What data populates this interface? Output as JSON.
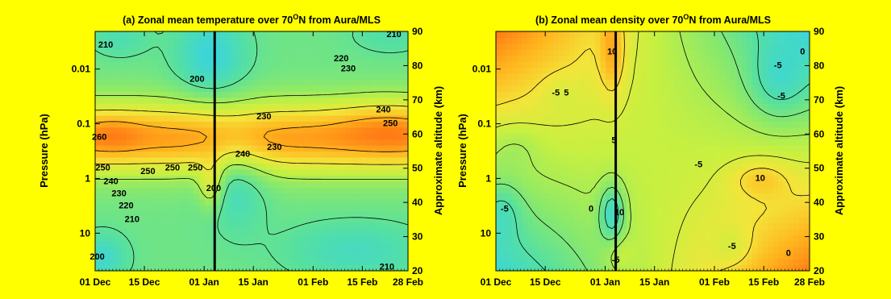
{
  "chart_data": [
    {
      "type": "heatmap",
      "title_prefix": "(a) Zonal mean temperature over 70",
      "title_sup": "O",
      "title_suffix": "N from Aura/MLS",
      "ylabel_left": "Pressure (hPa)",
      "ylabel_right": "Approximate altitude (km)",
      "x_ticks": [
        "01 Dec",
        "15 Dec",
        "01 Jan",
        "15 Jan",
        "01 Feb",
        "15 Feb",
        "28 Feb"
      ],
      "x_tick_days": [
        0,
        14,
        31,
        45,
        62,
        76,
        89
      ],
      "x_range_days": [
        0,
        89
      ],
      "y_log_pressure_ticks": [
        "0.01",
        "0.1",
        "1",
        "10"
      ],
      "y_altitude_ticks": [
        "20",
        "30",
        "40",
        "50",
        "60",
        "70",
        "80",
        "90"
      ],
      "y_altitude_range_km": [
        20,
        90
      ],
      "event_line_day": 34,
      "colormap": [
        "#1e5fe0",
        "#2fa8f0",
        "#3cd6d6",
        "#56e0a0",
        "#8be96a",
        "#c8f040",
        "#f3e53a",
        "#ffb41e",
        "#ff7a14",
        "#d2281c"
      ],
      "value_range": [
        195,
        265
      ],
      "contour_labels": [
        {
          "text": "210",
          "day": 3,
          "alt": 86
        },
        {
          "text": "200",
          "day": 0.6,
          "alt": 24
        },
        {
          "text": "260",
          "day": 1.2,
          "alt": 59
        },
        {
          "text": "250",
          "day": 2.2,
          "alt": 50
        },
        {
          "text": "240",
          "day": 4.5,
          "alt": 46
        },
        {
          "text": "230",
          "day": 6.8,
          "alt": 42.5
        },
        {
          "text": "220",
          "day": 8.8,
          "alt": 39
        },
        {
          "text": "210",
          "day": 10.5,
          "alt": 35
        },
        {
          "text": "250",
          "day": 15,
          "alt": 49
        },
        {
          "text": "250",
          "day": 22,
          "alt": 50
        },
        {
          "text": "250",
          "day": 28.5,
          "alt": 50
        },
        {
          "text": "200",
          "day": 29,
          "alt": 76
        },
        {
          "text": "200",
          "day": 33.7,
          "alt": 44
        },
        {
          "text": "230",
          "day": 48,
          "alt": 65
        },
        {
          "text": "240",
          "day": 42,
          "alt": 54
        },
        {
          "text": "230",
          "day": 51,
          "alt": 56
        },
        {
          "text": "220",
          "day": 70,
          "alt": 82
        },
        {
          "text": "230",
          "day": 72,
          "alt": 79
        },
        {
          "text": "240",
          "day": 82,
          "alt": 67
        },
        {
          "text": "250",
          "day": 84,
          "alt": 63
        },
        {
          "text": "210",
          "day": 85,
          "alt": 89
        },
        {
          "text": "210",
          "day": 83,
          "alt": 21
        }
      ]
    },
    {
      "type": "heatmap",
      "title_prefix": "(b) Zonal mean density over 70",
      "title_sup": "O",
      "title_suffix": "N from Aura/MLS",
      "ylabel_left": "Pressure (hPa)",
      "ylabel_right": "Approximate altitude (km)",
      "x_ticks": [
        "01 Dec",
        "15 Dec",
        "01 Jan",
        "15 Jan",
        "01 Feb",
        "15 Feb",
        "28 Feb"
      ],
      "x_tick_days": [
        0,
        14,
        31,
        45,
        62,
        76,
        89
      ],
      "x_range_days": [
        0,
        89
      ],
      "y_log_pressure_ticks": [
        "0.01",
        "0.1",
        "1",
        "10"
      ],
      "y_altitude_ticks": [
        "20",
        "30",
        "40",
        "50",
        "60",
        "70",
        "80",
        "90"
      ],
      "y_altitude_range_km": [
        20,
        90
      ],
      "event_line_day": 34,
      "colormap": [
        "#1e5fe0",
        "#2fa8f0",
        "#3cd6d6",
        "#56e0a0",
        "#8be96a",
        "#c8f040",
        "#f3e53a",
        "#ffb41e",
        "#ff7a14",
        "#d2281c"
      ],
      "value_range": [
        -28,
        28
      ],
      "contour_labels": [
        {
          "text": "10",
          "day": 33,
          "alt": 84
        },
        {
          "text": "-5",
          "day": 17,
          "alt": 72
        },
        {
          "text": "5",
          "day": 20,
          "alt": 72
        },
        {
          "text": "0",
          "day": 87,
          "alt": 84
        },
        {
          "text": "-5",
          "day": 80,
          "alt": 80
        },
        {
          "text": "-5",
          "day": 81,
          "alt": 71
        },
        {
          "text": "5",
          "day": 33.5,
          "alt": 58
        },
        {
          "text": "-5",
          "day": 57.5,
          "alt": 51
        },
        {
          "text": "10",
          "day": 75,
          "alt": 47
        },
        {
          "text": "0",
          "day": 27,
          "alt": 38
        },
        {
          "text": "10",
          "day": 35,
          "alt": 37
        },
        {
          "text": "-5",
          "day": 2.5,
          "alt": 38
        },
        {
          "text": "-5",
          "day": 34,
          "alt": 23
        },
        {
          "text": "-5",
          "day": 67,
          "alt": 27
        },
        {
          "text": "0",
          "day": 83,
          "alt": 25
        }
      ]
    }
  ]
}
